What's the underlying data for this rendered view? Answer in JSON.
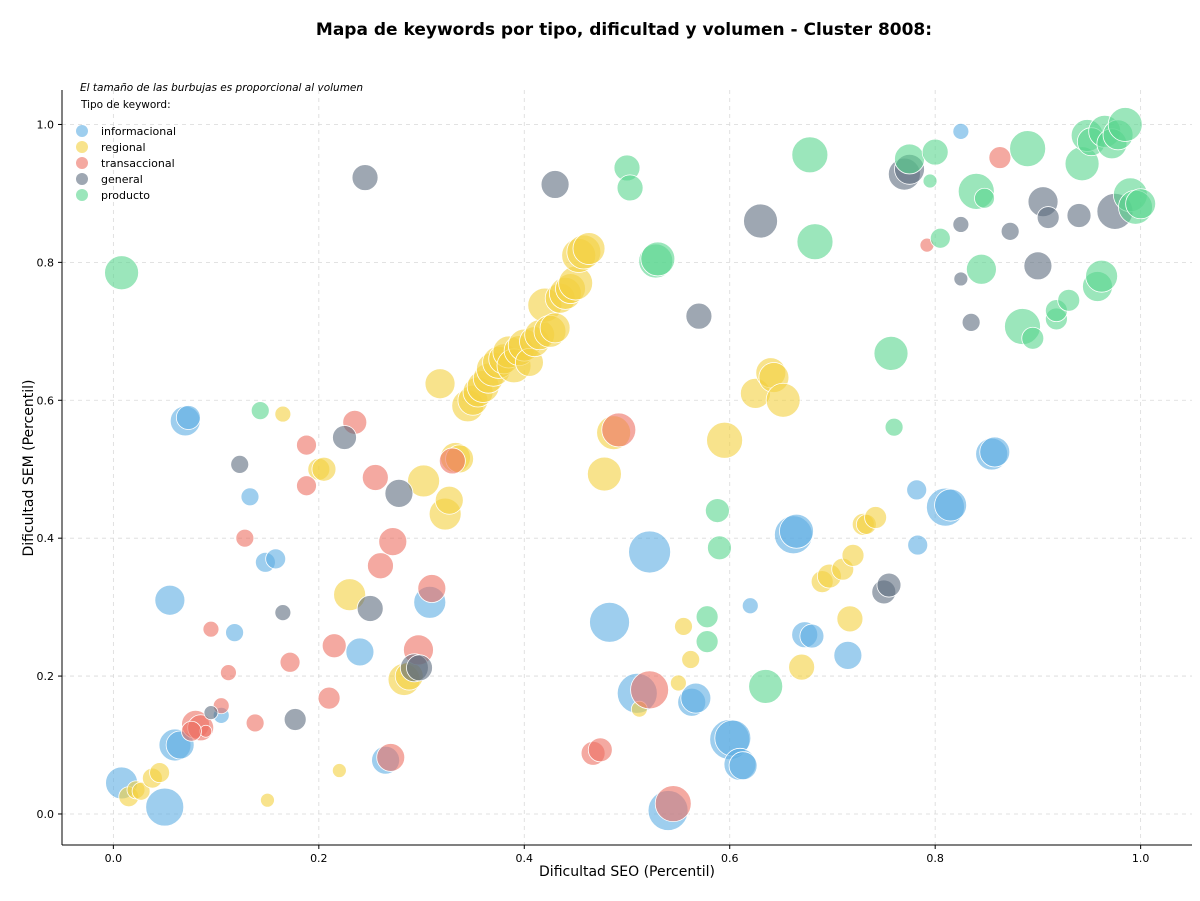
{
  "chart_data": {
    "type": "scatter",
    "title": "Mapa de keywords por tipo, dificultad y volumen - Cluster 8008:",
    "note": "El tamaño de las burbujas es proporcional al volumen",
    "xlabel": "Dificultad SEO (Percentil)",
    "ylabel": "Dificultad SEM (Percentil)",
    "xlim": [
      -0.05,
      1.05
    ],
    "ylim": [
      -0.045,
      1.05
    ],
    "xticks": [
      "0.0",
      "0.2",
      "0.4",
      "0.6",
      "0.8",
      "1.0"
    ],
    "yticks": [
      "0.0",
      "0.2",
      "0.4",
      "0.6",
      "0.8",
      "1.0"
    ],
    "grid": true,
    "legend": {
      "title": "Tipo de keyword:",
      "placement": "top-left"
    },
    "series": [
      {
        "name": "informacional",
        "color": "#5dade2",
        "points": [
          [
            0.008,
            0.045,
            16
          ],
          [
            0.05,
            0.01,
            19
          ],
          [
            0.06,
            0.1,
            16
          ],
          [
            0.065,
            0.1,
            14
          ],
          [
            0.055,
            0.31,
            15
          ],
          [
            0.07,
            0.57,
            15
          ],
          [
            0.073,
            0.575,
            12
          ],
          [
            0.105,
            0.143,
            8
          ],
          [
            0.118,
            0.263,
            9
          ],
          [
            0.133,
            0.46,
            9
          ],
          [
            0.148,
            0.365,
            10
          ],
          [
            0.158,
            0.37,
            10
          ],
          [
            0.24,
            0.235,
            14
          ],
          [
            0.265,
            0.078,
            14
          ],
          [
            0.308,
            0.307,
            16
          ],
          [
            0.483,
            0.278,
            20
          ],
          [
            0.522,
            0.38,
            21
          ],
          [
            0.51,
            0.175,
            20
          ],
          [
            0.563,
            0.162,
            14
          ],
          [
            0.567,
            0.168,
            15
          ],
          [
            0.6,
            0.108,
            20
          ],
          [
            0.603,
            0.11,
            18
          ],
          [
            0.61,
            0.072,
            16
          ],
          [
            0.613,
            0.07,
            14
          ],
          [
            0.62,
            0.302,
            8
          ],
          [
            0.54,
            0.005,
            20
          ],
          [
            0.662,
            0.405,
            19
          ],
          [
            0.665,
            0.41,
            17
          ],
          [
            0.673,
            0.26,
            13
          ],
          [
            0.68,
            0.258,
            12
          ],
          [
            0.715,
            0.23,
            14
          ],
          [
            0.782,
            0.47,
            10
          ],
          [
            0.783,
            0.39,
            10
          ],
          [
            0.81,
            0.445,
            19
          ],
          [
            0.815,
            0.448,
            16
          ],
          [
            0.855,
            0.522,
            16
          ],
          [
            0.858,
            0.525,
            15
          ],
          [
            0.825,
            0.99,
            8
          ]
        ]
      },
      {
        "name": "regional",
        "color": "#f4d03f",
        "points": [
          [
            0.015,
            0.025,
            10
          ],
          [
            0.022,
            0.035,
            9
          ],
          [
            0.027,
            0.033,
            9
          ],
          [
            0.038,
            0.052,
            10
          ],
          [
            0.045,
            0.06,
            10
          ],
          [
            0.15,
            0.02,
            7
          ],
          [
            0.165,
            0.58,
            8
          ],
          [
            0.2,
            0.5,
            11
          ],
          [
            0.205,
            0.5,
            12
          ],
          [
            0.22,
            0.063,
            7
          ],
          [
            0.23,
            0.318,
            16
          ],
          [
            0.283,
            0.195,
            16
          ],
          [
            0.288,
            0.2,
            14
          ],
          [
            0.302,
            0.483,
            16
          ],
          [
            0.323,
            0.435,
            16
          ],
          [
            0.327,
            0.455,
            14
          ],
          [
            0.333,
            0.517,
            15
          ],
          [
            0.337,
            0.515,
            14
          ],
          [
            0.318,
            0.624,
            15
          ],
          [
            0.345,
            0.592,
            16
          ],
          [
            0.35,
            0.6,
            15
          ],
          [
            0.355,
            0.612,
            15
          ],
          [
            0.36,
            0.62,
            16
          ],
          [
            0.365,
            0.632,
            15
          ],
          [
            0.37,
            0.645,
            17
          ],
          [
            0.375,
            0.655,
            16
          ],
          [
            0.38,
            0.66,
            15
          ],
          [
            0.385,
            0.67,
            16
          ],
          [
            0.39,
            0.65,
            17
          ],
          [
            0.395,
            0.672,
            15
          ],
          [
            0.4,
            0.68,
            16
          ],
          [
            0.405,
            0.655,
            14
          ],
          [
            0.41,
            0.685,
            15
          ],
          [
            0.415,
            0.695,
            15
          ],
          [
            0.42,
            0.738,
            17
          ],
          [
            0.425,
            0.7,
            16
          ],
          [
            0.43,
            0.705,
            15
          ],
          [
            0.435,
            0.748,
            15
          ],
          [
            0.44,
            0.755,
            16
          ],
          [
            0.445,
            0.762,
            15
          ],
          [
            0.45,
            0.77,
            17
          ],
          [
            0.453,
            0.81,
            17
          ],
          [
            0.458,
            0.815,
            17
          ],
          [
            0.463,
            0.82,
            16
          ],
          [
            0.478,
            0.493,
            17
          ],
          [
            0.487,
            0.553,
            17
          ],
          [
            0.512,
            0.152,
            8
          ],
          [
            0.55,
            0.19,
            8
          ],
          [
            0.555,
            0.272,
            9
          ],
          [
            0.562,
            0.224,
            9
          ],
          [
            0.595,
            0.542,
            18
          ],
          [
            0.625,
            0.61,
            15
          ],
          [
            0.64,
            0.64,
            15
          ],
          [
            0.643,
            0.633,
            15
          ],
          [
            0.652,
            0.6,
            17
          ],
          [
            0.67,
            0.213,
            13
          ],
          [
            0.69,
            0.337,
            11
          ],
          [
            0.697,
            0.345,
            12
          ],
          [
            0.71,
            0.355,
            11
          ],
          [
            0.72,
            0.375,
            11
          ],
          [
            0.717,
            0.283,
            13
          ],
          [
            0.73,
            0.42,
            11
          ],
          [
            0.733,
            0.42,
            10
          ],
          [
            0.742,
            0.43,
            11
          ]
        ]
      },
      {
        "name": "transaccional",
        "color": "#ec7063",
        "points": [
          [
            0.08,
            0.13,
            14
          ],
          [
            0.085,
            0.125,
            13
          ],
          [
            0.09,
            0.12,
            6
          ],
          [
            0.076,
            0.12,
            10
          ],
          [
            0.095,
            0.268,
            8
          ],
          [
            0.105,
            0.157,
            8
          ],
          [
            0.112,
            0.205,
            8
          ],
          [
            0.128,
            0.4,
            9
          ],
          [
            0.138,
            0.132,
            9
          ],
          [
            0.172,
            0.22,
            10
          ],
          [
            0.188,
            0.535,
            10
          ],
          [
            0.188,
            0.476,
            10
          ],
          [
            0.21,
            0.168,
            11
          ],
          [
            0.215,
            0.244,
            12
          ],
          [
            0.235,
            0.568,
            12
          ],
          [
            0.255,
            0.488,
            13
          ],
          [
            0.26,
            0.36,
            13
          ],
          [
            0.272,
            0.395,
            14
          ],
          [
            0.27,
            0.082,
            14
          ],
          [
            0.297,
            0.238,
            15
          ],
          [
            0.31,
            0.327,
            14
          ],
          [
            0.33,
            0.512,
            13
          ],
          [
            0.467,
            0.088,
            12
          ],
          [
            0.474,
            0.093,
            12
          ],
          [
            0.492,
            0.557,
            17
          ],
          [
            0.522,
            0.18,
            19
          ],
          [
            0.545,
            0.015,
            18
          ],
          [
            0.792,
            0.825,
            7
          ],
          [
            0.863,
            0.952,
            11
          ]
        ]
      },
      {
        "name": "general",
        "color": "#5d6d7e",
        "points": [
          [
            0.095,
            0.147,
            7
          ],
          [
            0.123,
            0.507,
            9
          ],
          [
            0.165,
            0.292,
            8
          ],
          [
            0.177,
            0.137,
            11
          ],
          [
            0.225,
            0.546,
            12
          ],
          [
            0.245,
            0.923,
            13
          ],
          [
            0.25,
            0.298,
            13
          ],
          [
            0.278,
            0.465,
            14
          ],
          [
            0.293,
            0.212,
            14
          ],
          [
            0.298,
            0.212,
            13
          ],
          [
            0.43,
            0.913,
            14
          ],
          [
            0.57,
            0.722,
            13
          ],
          [
            0.63,
            0.86,
            17
          ],
          [
            0.75,
            0.322,
            12
          ],
          [
            0.755,
            0.332,
            12
          ],
          [
            0.77,
            0.928,
            16
          ],
          [
            0.775,
            0.935,
            15
          ],
          [
            0.825,
            0.855,
            8
          ],
          [
            0.825,
            0.776,
            7
          ],
          [
            0.835,
            0.713,
            9
          ],
          [
            0.873,
            0.845,
            9
          ],
          [
            0.9,
            0.795,
            14
          ],
          [
            0.905,
            0.888,
            15
          ],
          [
            0.91,
            0.865,
            11
          ],
          [
            0.94,
            0.868,
            12
          ],
          [
            0.975,
            0.874,
            18
          ]
        ]
      },
      {
        "name": "producto",
        "color": "#58d68d",
        "points": [
          [
            0.008,
            0.785,
            17
          ],
          [
            0.143,
            0.585,
            9
          ],
          [
            0.5,
            0.937,
            13
          ],
          [
            0.503,
            0.908,
            13
          ],
          [
            0.528,
            0.802,
            17
          ],
          [
            0.53,
            0.805,
            17
          ],
          [
            0.578,
            0.286,
            11
          ],
          [
            0.578,
            0.25,
            11
          ],
          [
            0.588,
            0.44,
            12
          ],
          [
            0.59,
            0.386,
            12
          ],
          [
            0.635,
            0.185,
            17
          ],
          [
            0.678,
            0.956,
            18
          ],
          [
            0.683,
            0.83,
            18
          ],
          [
            0.757,
            0.668,
            17
          ],
          [
            0.76,
            0.561,
            9
          ],
          [
            0.775,
            0.95,
            15
          ],
          [
            0.795,
            0.918,
            7
          ],
          [
            0.8,
            0.96,
            13
          ],
          [
            0.805,
            0.835,
            10
          ],
          [
            0.84,
            0.903,
            18
          ],
          [
            0.848,
            0.893,
            10
          ],
          [
            0.845,
            0.79,
            15
          ],
          [
            0.885,
            0.707,
            18
          ],
          [
            0.89,
            0.965,
            18
          ],
          [
            0.895,
            0.69,
            11
          ],
          [
            0.918,
            0.718,
            11
          ],
          [
            0.918,
            0.73,
            11
          ],
          [
            0.93,
            0.745,
            11
          ],
          [
            0.943,
            0.943,
            17
          ],
          [
            0.948,
            0.984,
            16
          ],
          [
            0.952,
            0.975,
            14
          ],
          [
            0.958,
            0.765,
            15
          ],
          [
            0.962,
            0.78,
            16
          ],
          [
            0.965,
            0.99,
            16
          ],
          [
            0.972,
            0.972,
            15
          ],
          [
            0.978,
            0.985,
            15
          ],
          [
            0.985,
            1.0,
            17
          ],
          [
            0.99,
            0.898,
            17
          ],
          [
            0.995,
            0.88,
            17
          ],
          [
            1.0,
            0.885,
            15
          ]
        ]
      }
    ]
  }
}
